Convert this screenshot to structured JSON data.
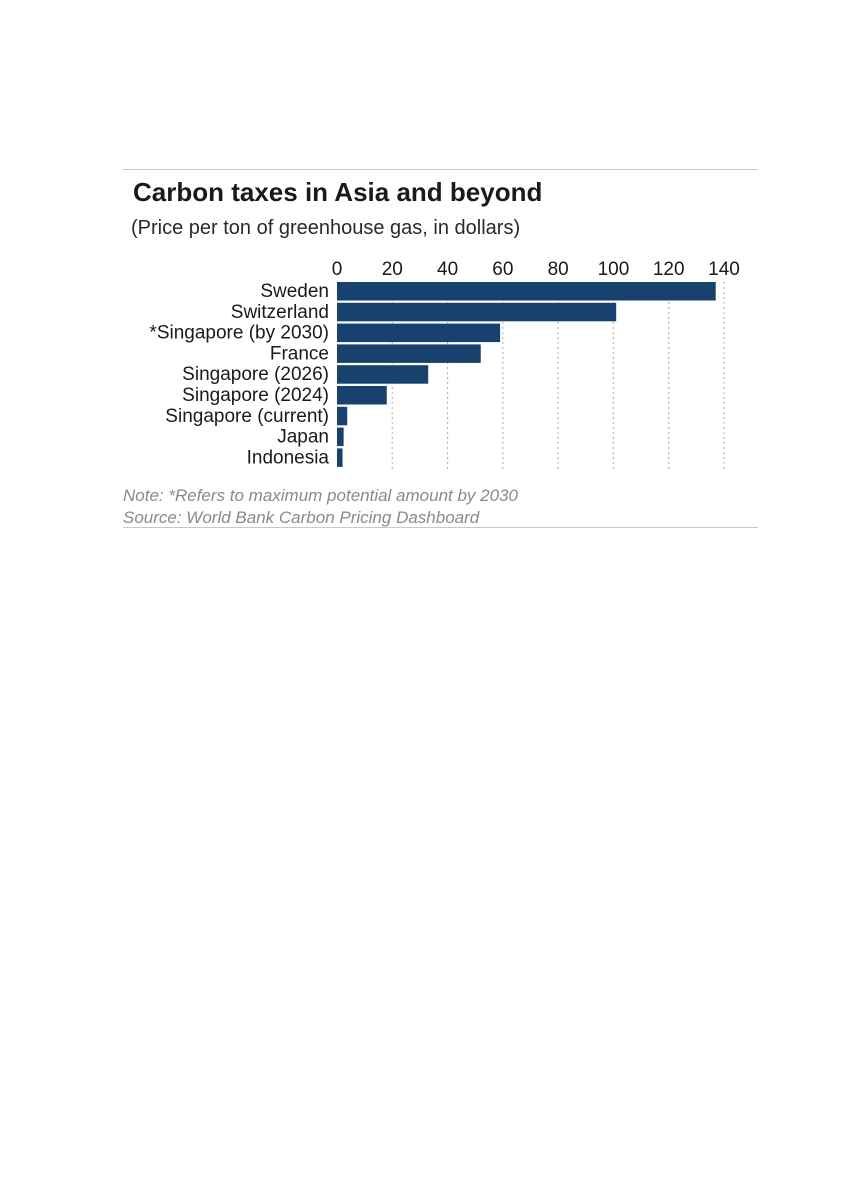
{
  "chart_data": {
    "type": "bar",
    "orientation": "horizontal",
    "title": "Carbon taxes in Asia and beyond",
    "subtitle": "(Price per ton of greenhouse gas, in dollars)",
    "categories": [
      "Sweden",
      "Switzerland",
      "*Singapore (by 2030)",
      "France",
      "Singapore (2026)",
      "Singapore (2024)",
      "Singapore (current)",
      "Japan",
      "Indonesia"
    ],
    "values": [
      137,
      101,
      59,
      52,
      33,
      18,
      3.7,
      2.4,
      2
    ],
    "xlim": [
      0,
      140
    ],
    "xticks": [
      "0",
      "20",
      "40",
      "60",
      "80",
      "100",
      "120",
      "140"
    ],
    "axis_position": "top",
    "grid": "vertical dotted",
    "bar_color": "#17416f",
    "note": "Note: *Refers to maximum potential amount by 2030",
    "source": "Source: World Bank Carbon Pricing Dashboard"
  }
}
